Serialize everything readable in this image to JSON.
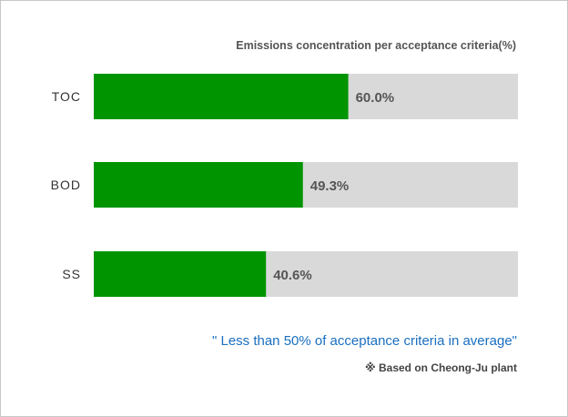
{
  "chart_data": {
    "type": "bar",
    "orientation": "horizontal",
    "title": "Emissions concentration per acceptance criteria(%)",
    "categories": [
      "TOC",
      "BOD",
      "SS"
    ],
    "values": [
      60.0,
      49.3,
      40.6
    ],
    "value_labels": [
      "60.0%",
      "49.3%",
      "40.6%"
    ],
    "xlim": [
      0,
      100
    ],
    "bar_color": "#009400",
    "track_color": "#d9d9d9",
    "grid": false
  },
  "notes": {
    "summary": "\" Less than  50% of acceptance criteria in average\"",
    "basis": "※ Based on Cheong-Ju plant"
  }
}
